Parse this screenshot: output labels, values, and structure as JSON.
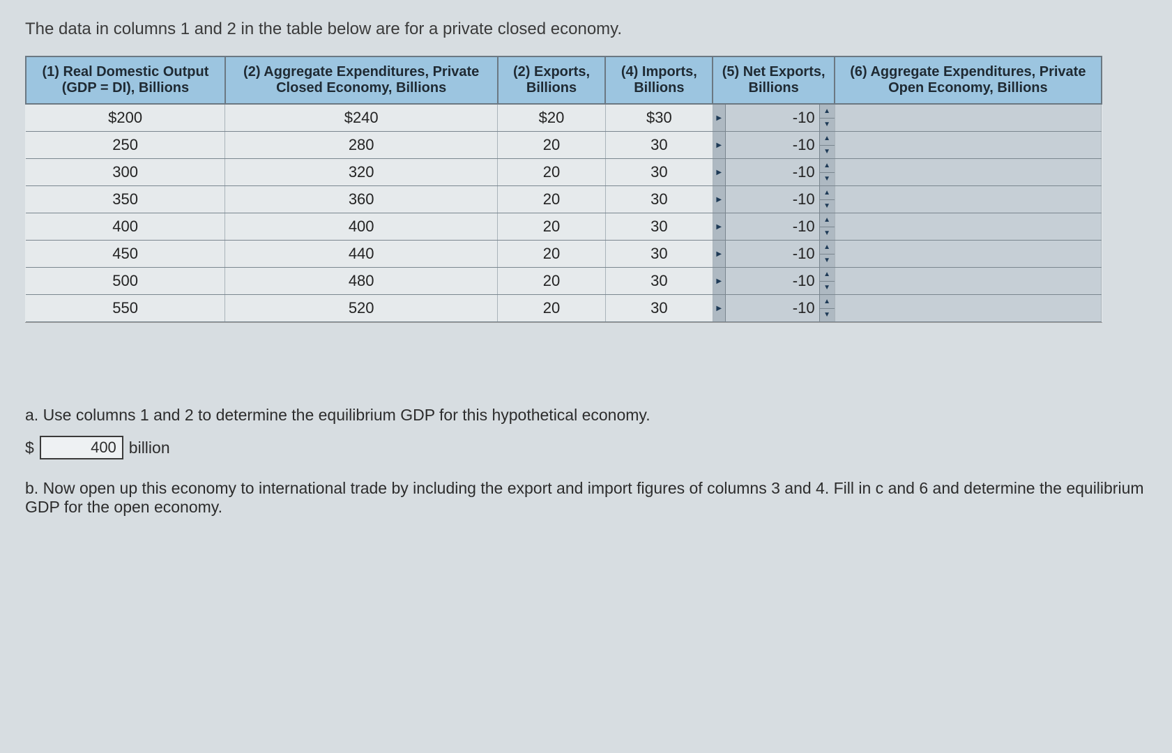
{
  "intro": "The data in columns 1 and 2 in the table below are for a private closed economy.",
  "table": {
    "headers": [
      "(1) Real Domestic Output (GDP = DI), Billions",
      "(2) Aggregate Expenditures, Private Closed Economy, Billions",
      "(2) Exports, Billions",
      "(4) Imports, Billions",
      "(5) Net Exports, Billions",
      "(6) Aggregate Expenditures, Private Open Economy, Billions"
    ],
    "rows": [
      {
        "c1": "$200",
        "c2": "$240",
        "c3": "$20",
        "c4": "$30",
        "c5": "-10",
        "c6": ""
      },
      {
        "c1": "250",
        "c2": "280",
        "c3": "20",
        "c4": "30",
        "c5": "-10",
        "c6": ""
      },
      {
        "c1": "300",
        "c2": "320",
        "c3": "20",
        "c4": "30",
        "c5": "-10",
        "c6": ""
      },
      {
        "c1": "350",
        "c2": "360",
        "c3": "20",
        "c4": "30",
        "c5": "-10",
        "c6": ""
      },
      {
        "c1": "400",
        "c2": "400",
        "c3": "20",
        "c4": "30",
        "c5": "-10",
        "c6": ""
      },
      {
        "c1": "450",
        "c2": "440",
        "c3": "20",
        "c4": "30",
        "c5": "-10",
        "c6": ""
      },
      {
        "c1": "500",
        "c2": "480",
        "c3": "20",
        "c4": "30",
        "c5": "-10",
        "c6": ""
      },
      {
        "c1": "550",
        "c2": "520",
        "c3": "20",
        "c4": "30",
        "c5": "-10",
        "c6": ""
      }
    ],
    "header_bg": "#9cc5e0",
    "body_bg": "#e6eaec",
    "input_bg": "#c6cfd6",
    "border_color": "#7a868f"
  },
  "qa": {
    "a_text": "a. Use columns 1 and 2 to determine the equilibrium GDP for this hypothetical economy.",
    "a_dollar": "$",
    "a_value": "400",
    "a_unit": "billion",
    "b_text": "b. Now open up this economy to international trade by including the export and import figures of columns 3 and 4. Fill in c and 6 and determine the equilibrium GDP for the open economy."
  },
  "page_bg": "#d7dde1"
}
